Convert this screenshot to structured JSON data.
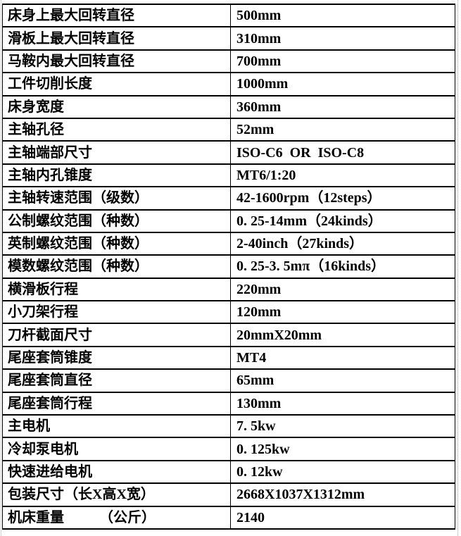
{
  "colors": {
    "background": "#ffffff",
    "grid_border": "#000000",
    "text": "#000000",
    "page_boundary": "#aaaaaa"
  },
  "table": {
    "description": "lathe-machine-specification-table",
    "columns": [
      "parameter",
      "value"
    ],
    "rows": [
      {
        "label": "床身上最大回转直径",
        "value": "500mm"
      },
      {
        "label": "滑板上最大回转直径",
        "value": "310mm"
      },
      {
        "label": "马鞍内最大回转直径",
        "value": "700mm"
      },
      {
        "label": "工件切削长度",
        "value": "1000mm"
      },
      {
        "label": "床身宽度",
        "value": "360mm"
      },
      {
        "label": "主轴孔径",
        "value": "52mm"
      },
      {
        "label": "主轴端部尺寸",
        "value": "ISO-C6  OR  ISO-C8"
      },
      {
        "label": "主轴内孔锥度",
        "value": "MT6/1:20"
      },
      {
        "label": "主轴转速范围（级数）",
        "value": "42-1600rpm（12steps）"
      },
      {
        "label": "公制螺纹范围（种数）",
        "value": "0. 25-14mm（24kinds）"
      },
      {
        "label": "英制螺纹范围（种数）",
        "value": "2-40inch（27kinds）"
      },
      {
        "label": "模数螺纹范围（种数）",
        "value": "0. 25-3. 5mπ（16kinds）"
      },
      {
        "label": "横滑板行程",
        "value": "220mm"
      },
      {
        "label": "小刀架行程",
        "value": "120mm"
      },
      {
        "label": "刀杆截面尺寸",
        "value": "20mmX20mm"
      },
      {
        "label": "尾座套筒锥度",
        "value": "MT4"
      },
      {
        "label": "尾座套筒直径",
        "value": "65mm"
      },
      {
        "label": "尾座套筒行程",
        "value": "130mm"
      },
      {
        "label": "主电机",
        "value": "7. 5kw"
      },
      {
        "label": "冷却泵电机",
        "value": "0. 125kw"
      },
      {
        "label": "快速进给电机",
        "value": "0. 12kw"
      },
      {
        "label": "包装尺寸（长X高X宽）",
        "value": "2668X1037X1312mm"
      },
      {
        "label": "机床重量　　　（公斤）",
        "value": "2140"
      }
    ]
  }
}
